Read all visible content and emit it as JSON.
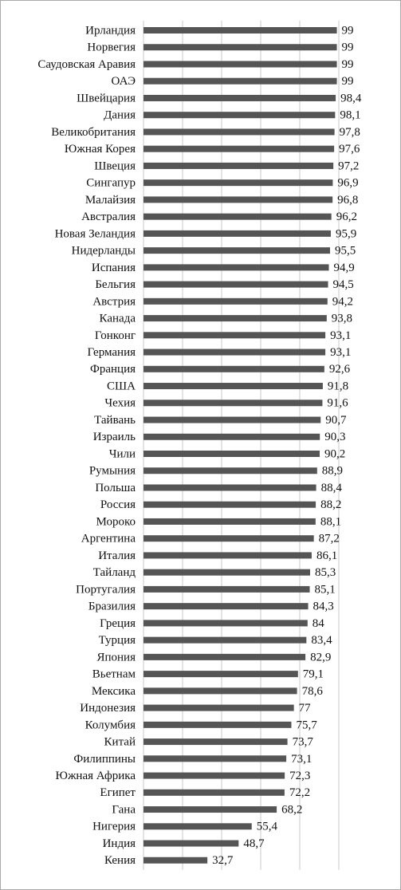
{
  "chart_data": {
    "type": "barh",
    "categories": [
      "Ирландия",
      "Норвегия",
      "Саудовская Аравия",
      "ОАЭ",
      "Швейцария",
      "Дания",
      "Великобритания",
      "Южная Корея",
      "Швеция",
      "Сингапур",
      "Малайзия",
      "Австралия",
      "Новая Зеландия",
      "Нидерланды",
      "Испания",
      "Бельгия",
      "Австрия",
      "Канада",
      "Гонконг",
      "Германия",
      "Франция",
      "США",
      "Чехия",
      "Тайвань",
      "Израиль",
      "Чили",
      "Румыния",
      "Польша",
      "Россия",
      "Мороко",
      "Аргентина",
      "Италия",
      "Тайланд",
      "Португалия",
      "Бразилия",
      "Греция",
      "Турция",
      "Япония",
      "Вьетнам",
      "Мексика",
      "Индонезия",
      "Колумбия",
      "Китай",
      "Филиппины",
      "Южная Африка",
      "Египет",
      "Гана",
      "Нигерия",
      "Индия",
      "Кения"
    ],
    "values": [
      99,
      99,
      99,
      99,
      98.4,
      98.1,
      97.8,
      97.6,
      97.2,
      96.9,
      96.8,
      96.2,
      95.9,
      95.5,
      94.9,
      94.5,
      94.2,
      93.8,
      93.1,
      93.1,
      92.6,
      91.8,
      91.6,
      90.7,
      90.3,
      90.2,
      88.9,
      88.4,
      88.2,
      88.1,
      87.2,
      86.1,
      85.3,
      85.1,
      84.3,
      84,
      83.4,
      82.9,
      79.1,
      78.6,
      77,
      75.7,
      73.7,
      73.1,
      72.3,
      72.2,
      68.2,
      55.4,
      48.7,
      32.7
    ],
    "value_labels": [
      "99",
      "99",
      "99",
      "99",
      "98,4",
      "98,1",
      "97,8",
      "97,6",
      "97,2",
      "96,9",
      "96,8",
      "96,2",
      "95,9",
      "95,5",
      "94,9",
      "94,5",
      "94,2",
      "93,8",
      "93,1",
      "93,1",
      "92,6",
      "91,8",
      "91,6",
      "90,7",
      "90,3",
      "90,2",
      "88,9",
      "88,4",
      "88,2",
      "88,1",
      "87,2",
      "86,1",
      "85,3",
      "85,1",
      "84,3",
      "84",
      "83,4",
      "82,9",
      "79,1",
      "78,6",
      "77",
      "75,7",
      "73,7",
      "73,1",
      "72,3",
      "72,2",
      "68,2",
      "55,4",
      "48,7",
      "32,7"
    ],
    "color": "#555555",
    "xlim": [
      0,
      100
    ],
    "xticks": [
      0,
      20,
      40,
      60,
      80,
      100
    ],
    "grid": true
  }
}
